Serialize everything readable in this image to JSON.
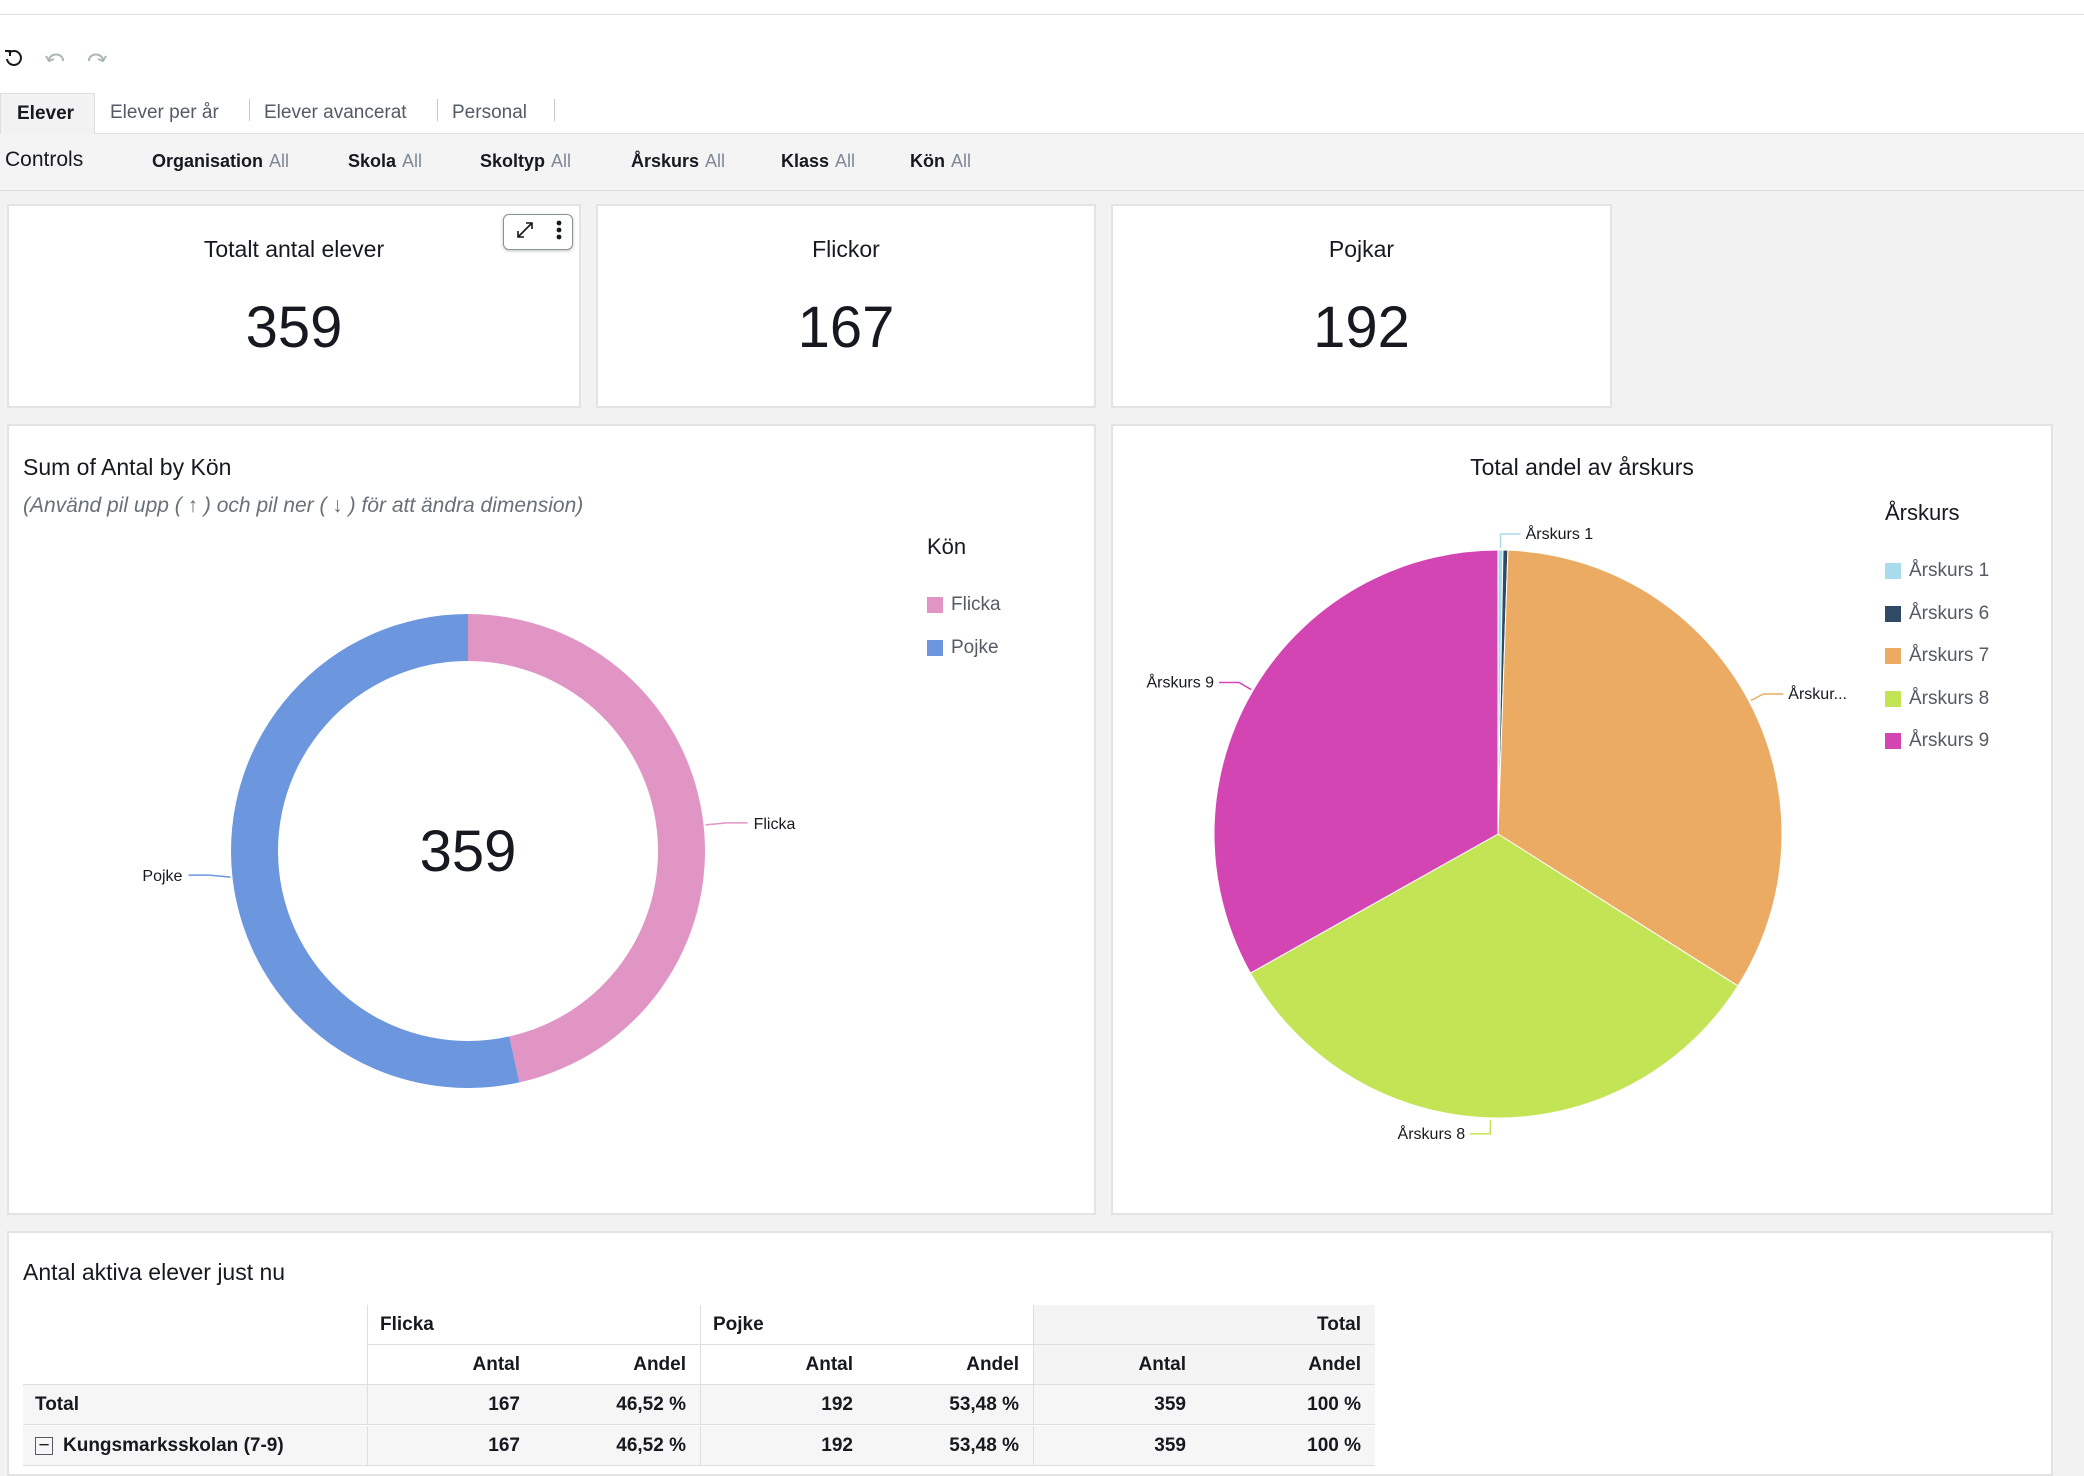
{
  "toolbar": {
    "undo_icon": "undo-icon",
    "redo_icon": "redo-icon",
    "reset_icon": "reset-icon"
  },
  "tabs": [
    {
      "label": "Elever",
      "active": true
    },
    {
      "label": "Elever per år",
      "active": false
    },
    {
      "label": "Elever avancerat",
      "active": false
    },
    {
      "label": "Personal",
      "active": false
    }
  ],
  "controls": {
    "title": "Controls",
    "filters": [
      {
        "name": "Organisation",
        "value": "All"
      },
      {
        "name": "Skola",
        "value": "All"
      },
      {
        "name": "Skoltyp",
        "value": "All"
      },
      {
        "name": "Årskurs",
        "value": "All"
      },
      {
        "name": "Klass",
        "value": "All"
      },
      {
        "name": "Kön",
        "value": "All"
      }
    ]
  },
  "kpis": [
    {
      "title": "Totalt antal elever",
      "value": "359"
    },
    {
      "title": "Flickor",
      "value": "167"
    },
    {
      "title": "Pojkar",
      "value": "192"
    }
  ],
  "chart_data": [
    {
      "type": "pie",
      "variant": "donut",
      "title": "Sum of Antal by Kön",
      "subtitle": "(Använd pil upp ( ↑ ) och pil ner ( ↓ ) för att ändra dimension)",
      "center_label": "359",
      "legend_title": "Kön",
      "legend_position": "top-right",
      "categories": [
        "Flicka",
        "Pojke"
      ],
      "values": [
        167,
        192
      ],
      "colors": [
        "#e195c5",
        "#6c97de"
      ]
    },
    {
      "type": "pie",
      "title": "Total andel av årskurs",
      "legend_title": "Årskurs",
      "legend_position": "top-right",
      "categories": [
        "Årskurs 1",
        "Årskurs 6",
        "Årskurs 7",
        "Årskurs 8",
        "Årskurs 9"
      ],
      "values": [
        1,
        1,
        120,
        118,
        119
      ],
      "slice_labels": [
        "Årskurs 1",
        "",
        "Årskur...",
        "Årskurs 8",
        "Årskurs 9"
      ],
      "colors": [
        "#a8dcec",
        "#2e4a66",
        "#ebab62",
        "#c3e455",
        "#d445b4"
      ]
    }
  ],
  "table": {
    "title": "Antal aktiva elever just nu",
    "groups": [
      "Flicka",
      "Pojke",
      "Total"
    ],
    "subheaders": [
      "Antal",
      "Andel",
      "Antal",
      "Andel",
      "Antal",
      "Andel"
    ],
    "rows": [
      {
        "label": "Total",
        "cells": [
          "167",
          "46,52 %",
          "192",
          "53,48 %",
          "359",
          "100 %"
        ]
      },
      {
        "label": "Kungsmarksskolan (7-9)",
        "cells": [
          "167",
          "46,52 %",
          "192",
          "53,48 %",
          "359",
          "100 %"
        ]
      }
    ]
  }
}
